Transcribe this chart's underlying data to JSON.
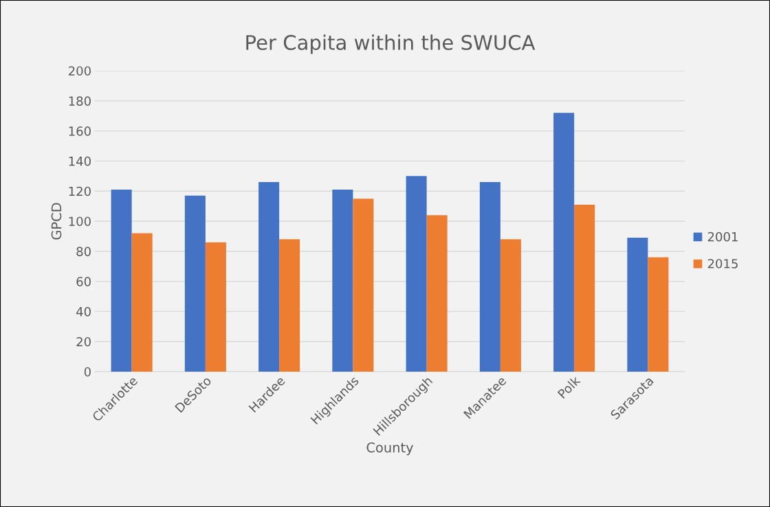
{
  "chart_data": {
    "type": "bar",
    "title": "Per Capita within the SWUCA",
    "xlabel": "County",
    "ylabel": "GPCD",
    "categories": [
      "Charlotte",
      "DeSoto",
      "Hardee",
      "Highlands",
      "Hillsborough",
      "Manatee",
      "Polk",
      "Sarasota"
    ],
    "series": [
      {
        "name": "2001",
        "color": "#4472c4",
        "values": [
          121,
          117,
          126,
          121,
          130,
          126,
          172,
          89
        ]
      },
      {
        "name": "2015",
        "color": "#ed7d31",
        "values": [
          92,
          86,
          88,
          115,
          104,
          88,
          111,
          76
        ]
      }
    ],
    "ylim": [
      0,
      200
    ],
    "yticks": [
      0,
      20,
      40,
      60,
      80,
      100,
      120,
      140,
      160,
      180,
      200
    ],
    "grid": "y",
    "legend": "right"
  }
}
